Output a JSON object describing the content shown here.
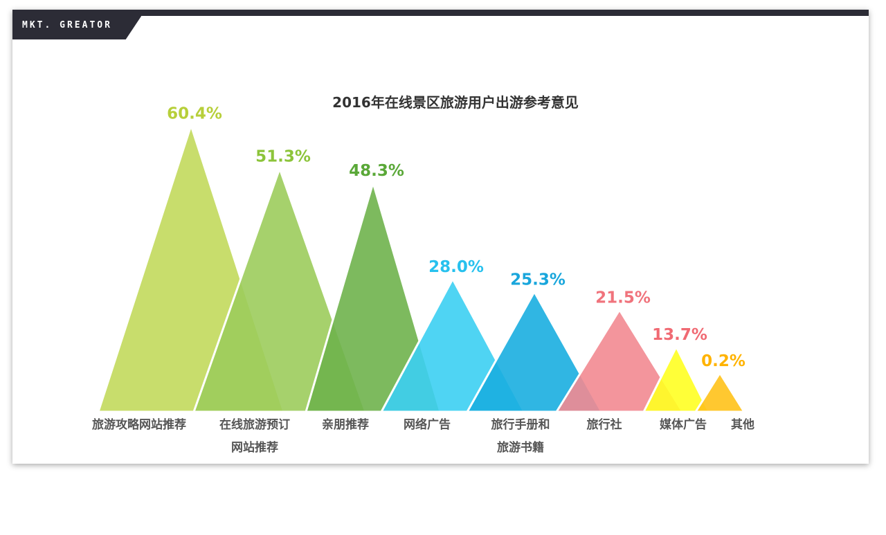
{
  "brand": "MKT. GREATOR",
  "chart_data": {
    "type": "bar",
    "title": "2016年在线景区旅游用户出游参考意见",
    "categories": [
      [
        "旅游攻略网站推荐"
      ],
      [
        "在线旅游预订",
        "网站推荐"
      ],
      [
        "亲朋推荐"
      ],
      [
        "网络广告"
      ],
      [
        "旅行手册和",
        "旅游书籍"
      ],
      [
        "旅行社"
      ],
      [
        "媒体广告"
      ],
      [
        "其他"
      ]
    ],
    "values": [
      60.4,
      51.3,
      48.3,
      28.0,
      25.3,
      21.5,
      13.7,
      0.2
    ],
    "value_labels": [
      "60.4%",
      "51.3%",
      "48.3%",
      "28.0%",
      "25.3%",
      "21.5%",
      "13.7%",
      "0.2%"
    ],
    "colors": [
      "#c2d95c",
      "#9ccc5c",
      "#6fb34c",
      "#3ccff2",
      "#1aaee0",
      "#f28a91",
      "#ffff22",
      "#ffc21a"
    ],
    "label_colors": [
      "#b7cf3a",
      "#8cc43a",
      "#5aa838",
      "#27c1ee",
      "#19a6dc",
      "#f0737c",
      "#f06a73",
      "#ffb300"
    ]
  }
}
